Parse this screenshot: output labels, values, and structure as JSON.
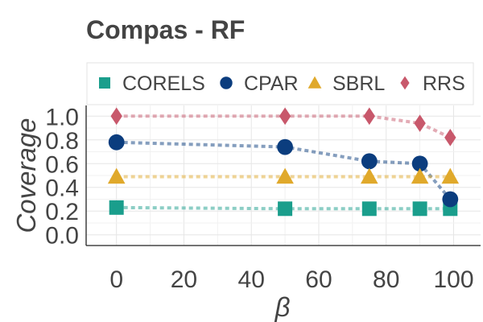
{
  "chart_data": {
    "type": "line",
    "title": "Compas - RF",
    "xlabel": "β",
    "ylabel": "Coverage",
    "xlim": [
      -9,
      108
    ],
    "ylim": [
      -0.09,
      1.09
    ],
    "xticks": [
      "0",
      "20",
      "40",
      "60",
      "80",
      "100"
    ],
    "yticks": [
      "0.0",
      "0.2",
      "0.4",
      "0.6",
      "0.8",
      "1.0"
    ],
    "grid": true,
    "legend_position": "top",
    "series": [
      {
        "name": "CORELS",
        "color": "#1a9e8c",
        "marker": "square",
        "x": [
          0,
          50,
          75,
          90,
          99
        ],
        "y": [
          0.23,
          0.22,
          0.22,
          0.22,
          0.22
        ]
      },
      {
        "name": "CPAR",
        "color": "#0b3d7e",
        "marker": "circle",
        "x": [
          0,
          50,
          75,
          90,
          99
        ],
        "y": [
          0.78,
          0.74,
          0.62,
          0.6,
          0.3
        ]
      },
      {
        "name": "SBRL",
        "color": "#e0a92b",
        "marker": "triangle",
        "x": [
          0,
          50,
          75,
          90,
          99
        ],
        "y": [
          0.49,
          0.49,
          0.49,
          0.49,
          0.49
        ]
      },
      {
        "name": "RRS",
        "color": "#c8586b",
        "marker": "diamond",
        "x": [
          0,
          50,
          75,
          90,
          99
        ],
        "y": [
          1.0,
          1.0,
          1.0,
          0.94,
          0.82
        ]
      }
    ]
  }
}
